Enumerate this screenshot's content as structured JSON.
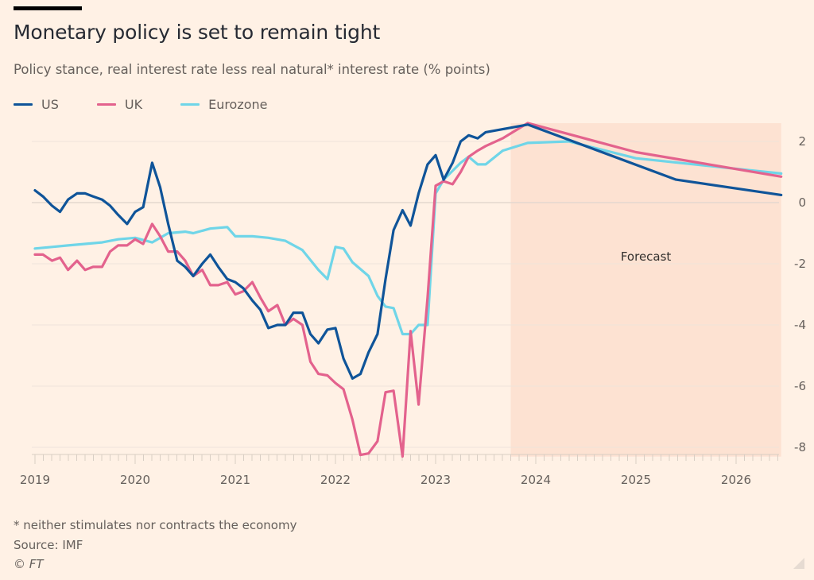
{
  "header": {
    "title": "Monetary policy is set to remain tight",
    "subtitle": "Policy stance, real interest rate less real natural* interest rate (% points)"
  },
  "legend": [
    {
      "label": "US",
      "color": "#0f5499"
    },
    {
      "label": "UK",
      "color": "#e3628d"
    },
    {
      "label": "Eurozone",
      "color": "#6fd5e8"
    }
  ],
  "footer": {
    "note": "* neither stimulates nor contracts the economy",
    "source": "Source: IMF",
    "copyright": "© FT"
  },
  "chart_data": {
    "type": "line",
    "title": "Monetary policy is set to remain tight",
    "subtitle": "Policy stance, real interest rate less real natural* interest rate (% points)",
    "xlabel": "",
    "ylabel": "% points",
    "x_ticks": [
      "2019",
      "2020",
      "2021",
      "2022",
      "2023",
      "2024",
      "2025",
      "2026"
    ],
    "y_ticks": [
      2,
      0,
      -2,
      -4,
      -6,
      -8
    ],
    "xlim": [
      2019.0,
      2026.5
    ],
    "ylim": [
      -8.2,
      2.6
    ],
    "grid": true,
    "legend_position": "top-left",
    "y_axis_side": "right",
    "annotation": {
      "label": "Forecast",
      "x_start": 2023.75,
      "x_end": 2026.45,
      "color": "#fde2d2"
    },
    "series": [
      {
        "name": "US",
        "color": "#0f5499",
        "points": [
          [
            2019.0,
            0.4
          ],
          [
            2019.08,
            0.2
          ],
          [
            2019.17,
            -0.1
          ],
          [
            2019.25,
            -0.3
          ],
          [
            2019.33,
            0.1
          ],
          [
            2019.42,
            0.3
          ],
          [
            2019.5,
            0.3
          ],
          [
            2019.58,
            0.2
          ],
          [
            2019.67,
            0.1
          ],
          [
            2019.75,
            -0.1
          ],
          [
            2019.83,
            -0.4
          ],
          [
            2019.92,
            -0.7
          ],
          [
            2020.0,
            -0.3
          ],
          [
            2020.08,
            -0.15
          ],
          [
            2020.17,
            1.3
          ],
          [
            2020.25,
            0.5
          ],
          [
            2020.33,
            -0.7
          ],
          [
            2020.42,
            -1.9
          ],
          [
            2020.5,
            -2.1
          ],
          [
            2020.58,
            -2.4
          ],
          [
            2020.67,
            -2.0
          ],
          [
            2020.75,
            -1.7
          ],
          [
            2020.83,
            -2.1
          ],
          [
            2020.92,
            -2.5
          ],
          [
            2021.0,
            -2.6
          ],
          [
            2021.08,
            -2.8
          ],
          [
            2021.17,
            -3.2
          ],
          [
            2021.25,
            -3.5
          ],
          [
            2021.33,
            -4.1
          ],
          [
            2021.42,
            -4.0
          ],
          [
            2021.5,
            -4.0
          ],
          [
            2021.58,
            -3.6
          ],
          [
            2021.67,
            -3.6
          ],
          [
            2021.75,
            -4.3
          ],
          [
            2021.83,
            -4.6
          ],
          [
            2021.92,
            -4.15
          ],
          [
            2022.0,
            -4.1
          ],
          [
            2022.08,
            -5.1
          ],
          [
            2022.17,
            -5.75
          ],
          [
            2022.25,
            -5.6
          ],
          [
            2022.33,
            -4.9
          ],
          [
            2022.42,
            -4.3
          ],
          [
            2022.5,
            -2.5
          ],
          [
            2022.58,
            -0.9
          ],
          [
            2022.67,
            -0.25
          ],
          [
            2022.75,
            -0.75
          ],
          [
            2022.83,
            0.3
          ],
          [
            2022.92,
            1.25
          ],
          [
            2023.0,
            1.55
          ],
          [
            2023.08,
            0.75
          ],
          [
            2023.17,
            1.3
          ],
          [
            2023.25,
            2.0
          ],
          [
            2023.33,
            2.2
          ],
          [
            2023.42,
            2.1
          ],
          [
            2023.5,
            2.3
          ],
          [
            2023.67,
            2.4
          ],
          [
            2023.92,
            2.55
          ],
          [
            2025.4,
            0.75
          ],
          [
            2026.45,
            0.25
          ]
        ]
      },
      {
        "name": "UK",
        "color": "#e3628d",
        "points": [
          [
            2019.0,
            -1.7
          ],
          [
            2019.08,
            -1.7
          ],
          [
            2019.17,
            -1.9
          ],
          [
            2019.25,
            -1.8
          ],
          [
            2019.33,
            -2.2
          ],
          [
            2019.42,
            -1.9
          ],
          [
            2019.5,
            -2.2
          ],
          [
            2019.58,
            -2.1
          ],
          [
            2019.67,
            -2.1
          ],
          [
            2019.75,
            -1.6
          ],
          [
            2019.83,
            -1.4
          ],
          [
            2019.92,
            -1.4
          ],
          [
            2020.0,
            -1.2
          ],
          [
            2020.08,
            -1.35
          ],
          [
            2020.17,
            -0.7
          ],
          [
            2020.25,
            -1.1
          ],
          [
            2020.33,
            -1.6
          ],
          [
            2020.42,
            -1.6
          ],
          [
            2020.5,
            -1.9
          ],
          [
            2020.58,
            -2.4
          ],
          [
            2020.67,
            -2.2
          ],
          [
            2020.75,
            -2.7
          ],
          [
            2020.83,
            -2.7
          ],
          [
            2020.92,
            -2.6
          ],
          [
            2021.0,
            -3.0
          ],
          [
            2021.08,
            -2.9
          ],
          [
            2021.17,
            -2.6
          ],
          [
            2021.25,
            -3.1
          ],
          [
            2021.33,
            -3.55
          ],
          [
            2021.42,
            -3.35
          ],
          [
            2021.5,
            -4.0
          ],
          [
            2021.58,
            -3.8
          ],
          [
            2021.67,
            -4.0
          ],
          [
            2021.75,
            -5.2
          ],
          [
            2021.83,
            -5.6
          ],
          [
            2021.92,
            -5.65
          ],
          [
            2022.0,
            -5.9
          ],
          [
            2022.08,
            -6.1
          ],
          [
            2022.17,
            -7.1
          ],
          [
            2022.25,
            -8.25
          ],
          [
            2022.33,
            -8.2
          ],
          [
            2022.42,
            -7.8
          ],
          [
            2022.5,
            -6.2
          ],
          [
            2022.58,
            -6.15
          ],
          [
            2022.67,
            -8.3
          ],
          [
            2022.75,
            -4.2
          ],
          [
            2022.83,
            -6.6
          ],
          [
            2022.92,
            -3.1
          ],
          [
            2023.0,
            0.55
          ],
          [
            2023.08,
            0.7
          ],
          [
            2023.17,
            0.6
          ],
          [
            2023.25,
            1.0
          ],
          [
            2023.33,
            1.5
          ],
          [
            2023.42,
            1.7
          ],
          [
            2023.5,
            1.85
          ],
          [
            2023.67,
            2.1
          ],
          [
            2023.92,
            2.6
          ],
          [
            2025.0,
            1.65
          ],
          [
            2026.45,
            0.85
          ]
        ]
      },
      {
        "name": "Eurozone",
        "color": "#6fd5e8",
        "points": [
          [
            2019.0,
            -1.5
          ],
          [
            2019.17,
            -1.45
          ],
          [
            2019.33,
            -1.4
          ],
          [
            2019.5,
            -1.35
          ],
          [
            2019.67,
            -1.3
          ],
          [
            2019.83,
            -1.2
          ],
          [
            2020.0,
            -1.15
          ],
          [
            2020.17,
            -1.3
          ],
          [
            2020.33,
            -1.0
          ],
          [
            2020.5,
            -0.95
          ],
          [
            2020.58,
            -1.0
          ],
          [
            2020.75,
            -0.85
          ],
          [
            2020.92,
            -0.8
          ],
          [
            2021.0,
            -1.1
          ],
          [
            2021.17,
            -1.1
          ],
          [
            2021.33,
            -1.15
          ],
          [
            2021.5,
            -1.25
          ],
          [
            2021.67,
            -1.55
          ],
          [
            2021.83,
            -2.2
          ],
          [
            2021.92,
            -2.5
          ],
          [
            2022.0,
            -1.45
          ],
          [
            2022.08,
            -1.5
          ],
          [
            2022.17,
            -1.95
          ],
          [
            2022.33,
            -2.4
          ],
          [
            2022.42,
            -3.05
          ],
          [
            2022.5,
            -3.4
          ],
          [
            2022.58,
            -3.45
          ],
          [
            2022.67,
            -4.3
          ],
          [
            2022.75,
            -4.3
          ],
          [
            2022.83,
            -4.0
          ],
          [
            2022.92,
            -4.0
          ],
          [
            2023.0,
            0.3
          ],
          [
            2023.08,
            0.75
          ],
          [
            2023.25,
            1.3
          ],
          [
            2023.33,
            1.5
          ],
          [
            2023.42,
            1.25
          ],
          [
            2023.5,
            1.25
          ],
          [
            2023.67,
            1.7
          ],
          [
            2023.92,
            1.95
          ],
          [
            2024.33,
            2.0
          ],
          [
            2025.0,
            1.45
          ],
          [
            2026.45,
            0.95
          ]
        ]
      }
    ]
  }
}
